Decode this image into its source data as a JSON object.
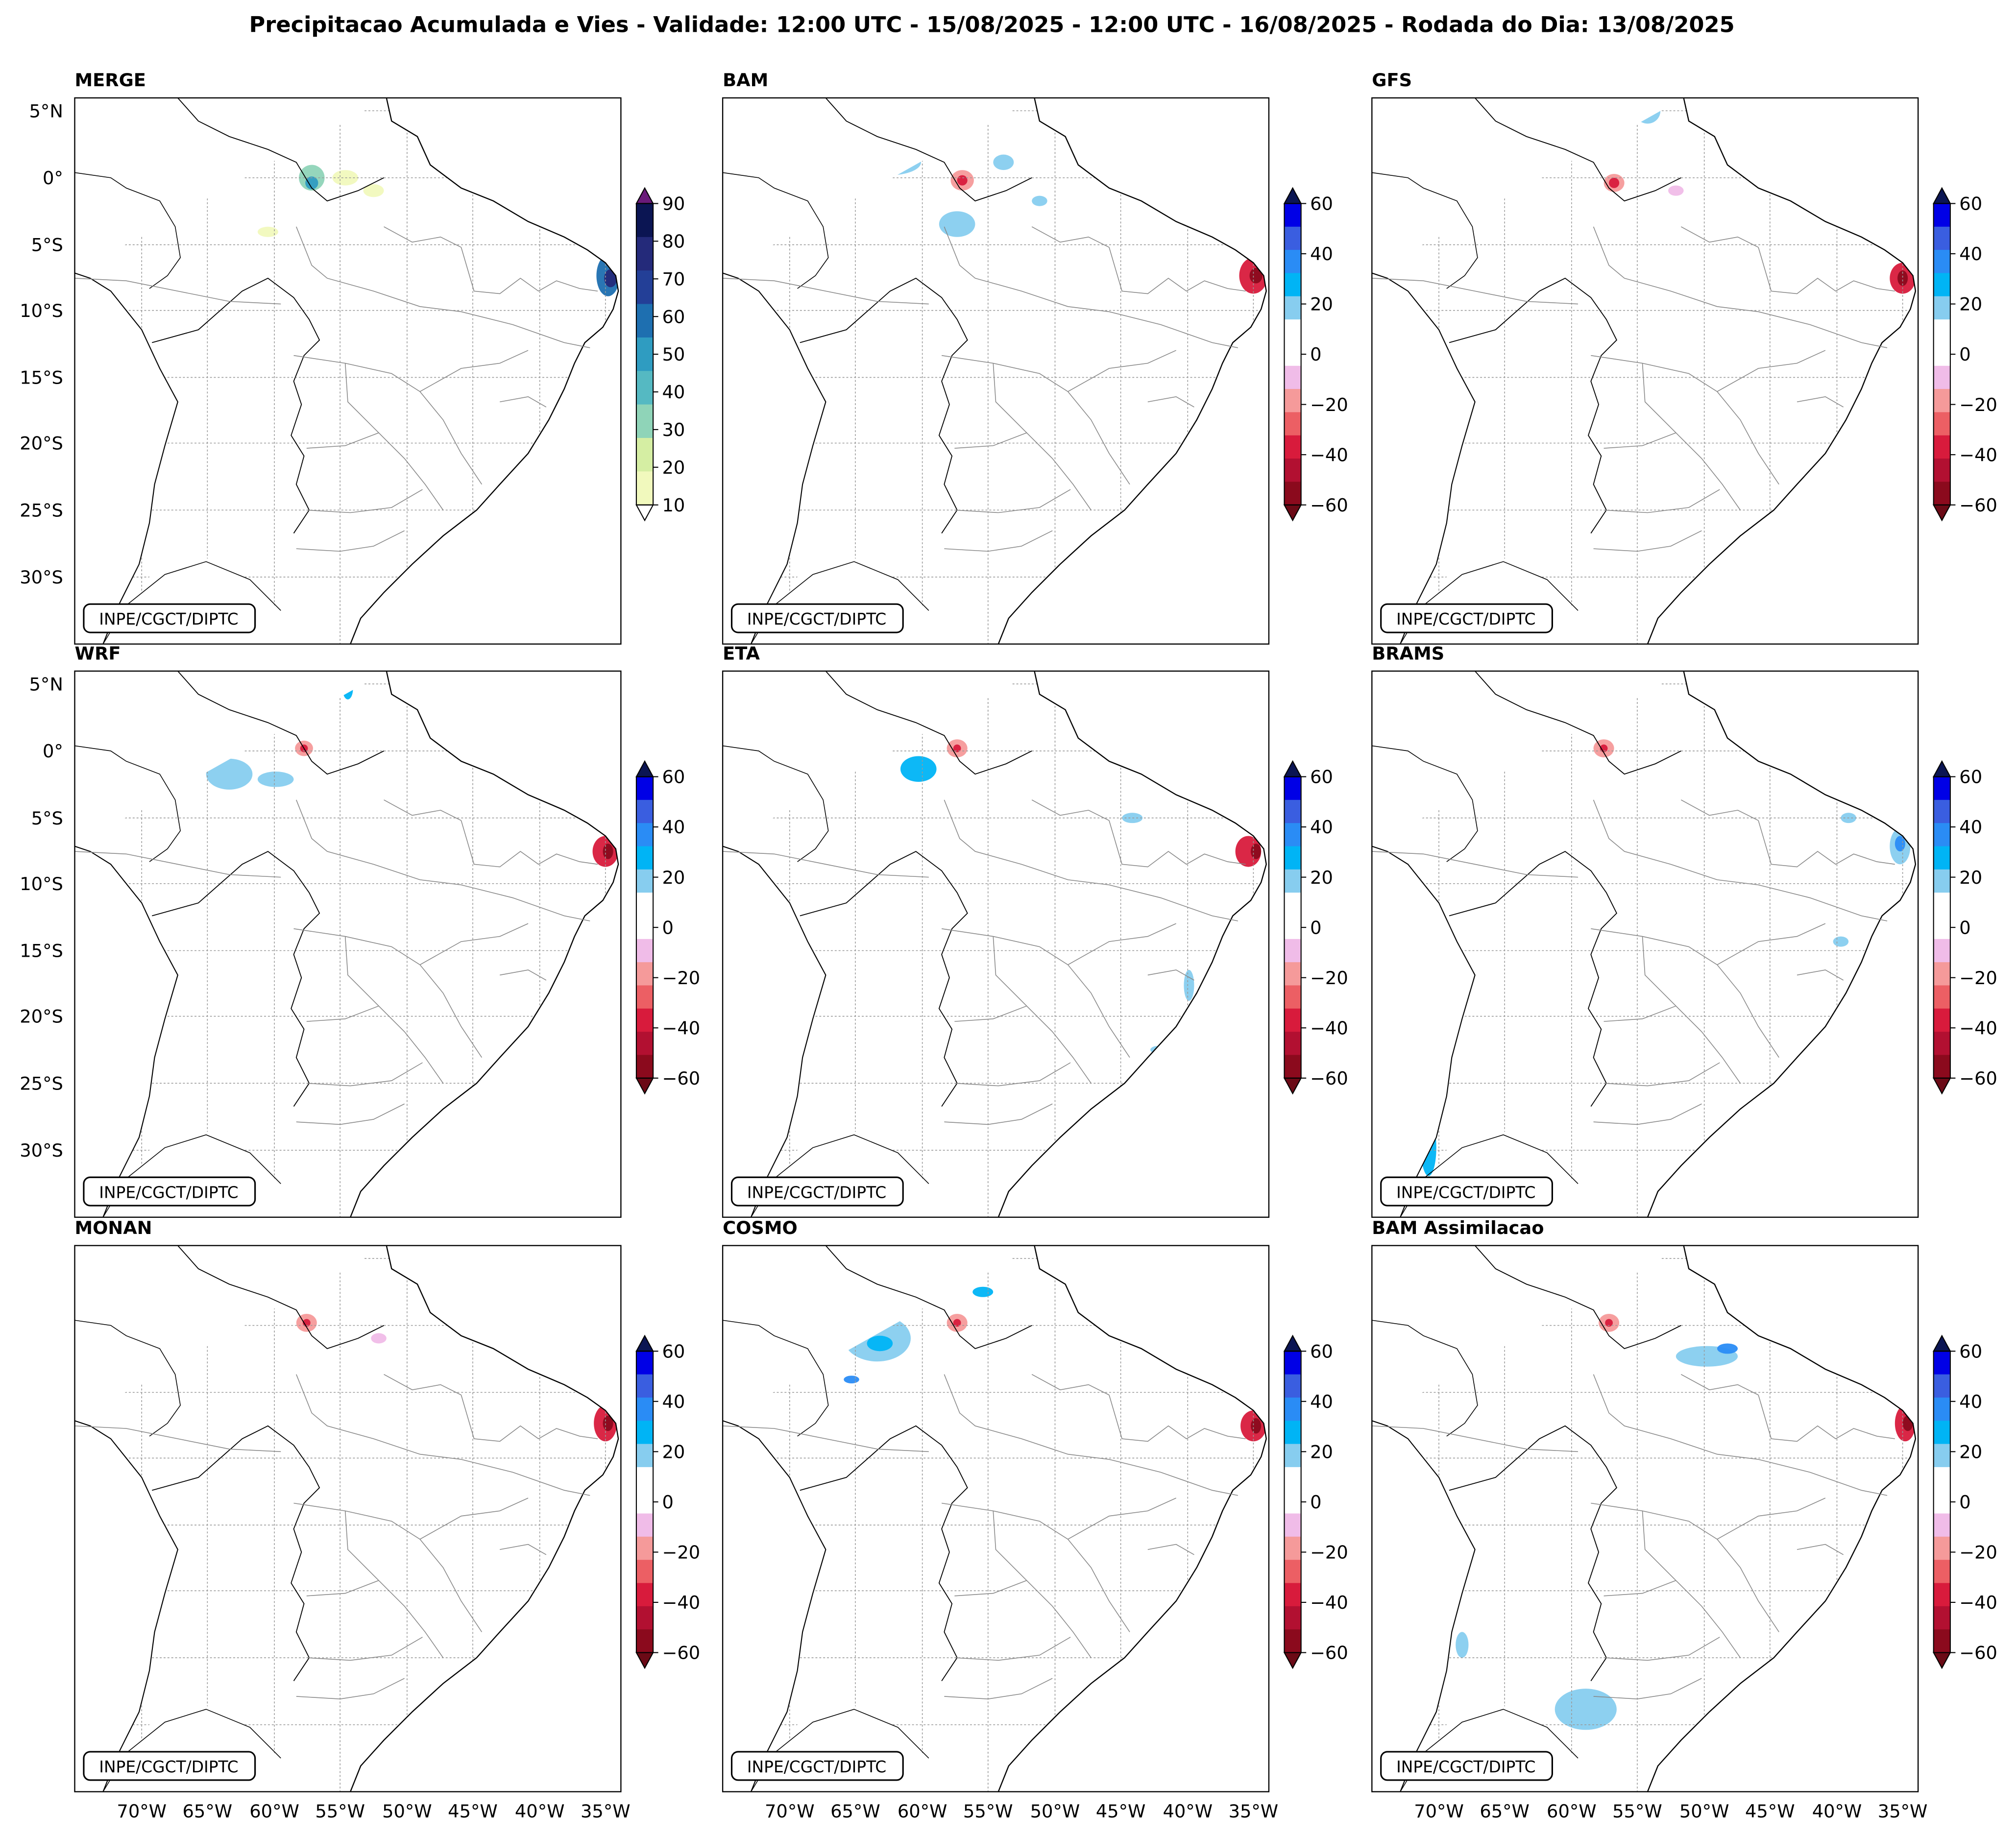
{
  "title": "Precipitacao Acumulada e Vies - Validade: 12:00 UTC - 15/08/2025 - 12:00 UTC - 16/08/2025 - Rodada do Dia: 13/08/2025",
  "credit": "INPE/CGCT/DIPTC",
  "lat_labels": [
    "5°N",
    "0°",
    "5°S",
    "10°S",
    "15°S",
    "20°S",
    "25°S",
    "30°S"
  ],
  "lon_labels": [
    "70°W",
    "65°W",
    "60°W",
    "55°W",
    "50°W",
    "45°W",
    "40°W",
    "35°W"
  ],
  "panels": [
    {
      "name": "MERGE",
      "colorbar": "precip"
    },
    {
      "name": "BAM",
      "colorbar": "bias"
    },
    {
      "name": "GFS",
      "colorbar": "bias"
    },
    {
      "name": "WRF",
      "colorbar": "bias"
    },
    {
      "name": "ETA",
      "colorbar": "bias"
    },
    {
      "name": "BRAMS",
      "colorbar": "bias"
    },
    {
      "name": "MONAN",
      "colorbar": "bias"
    },
    {
      "name": "COSMO",
      "colorbar": "bias"
    },
    {
      "name": "BAM Assimilacao",
      "colorbar": "bias"
    }
  ],
  "precip_scale": {
    "ticks": [
      "10",
      "20",
      "30",
      "40",
      "50",
      "60",
      "70",
      "80",
      "90"
    ],
    "colors": [
      "#f1f9bd",
      "#d5eea3",
      "#8fd4b8",
      "#55b9c2",
      "#2f9cc1",
      "#1e6fb0",
      "#233f97",
      "#242a7a",
      "#0b1553"
    ],
    "over_color": "#6a1a7a",
    "under_color": "#ffffff"
  },
  "bias_scale": {
    "ticks": [
      "60",
      "40",
      "20",
      "0",
      "−20",
      "−40",
      "−60"
    ],
    "colors": [
      "#0000e6",
      "#3a5ee0",
      "#2a8cf5",
      "#00b4f5",
      "#87cdef",
      "#ffffff",
      "#ffffff",
      "#f0bce8",
      "#f59a9a",
      "#ec5f64",
      "#d81b3c",
      "#b21031",
      "#8b0a1d"
    ],
    "over_color": "#0b1553",
    "under_color": "#6b0a16"
  }
}
